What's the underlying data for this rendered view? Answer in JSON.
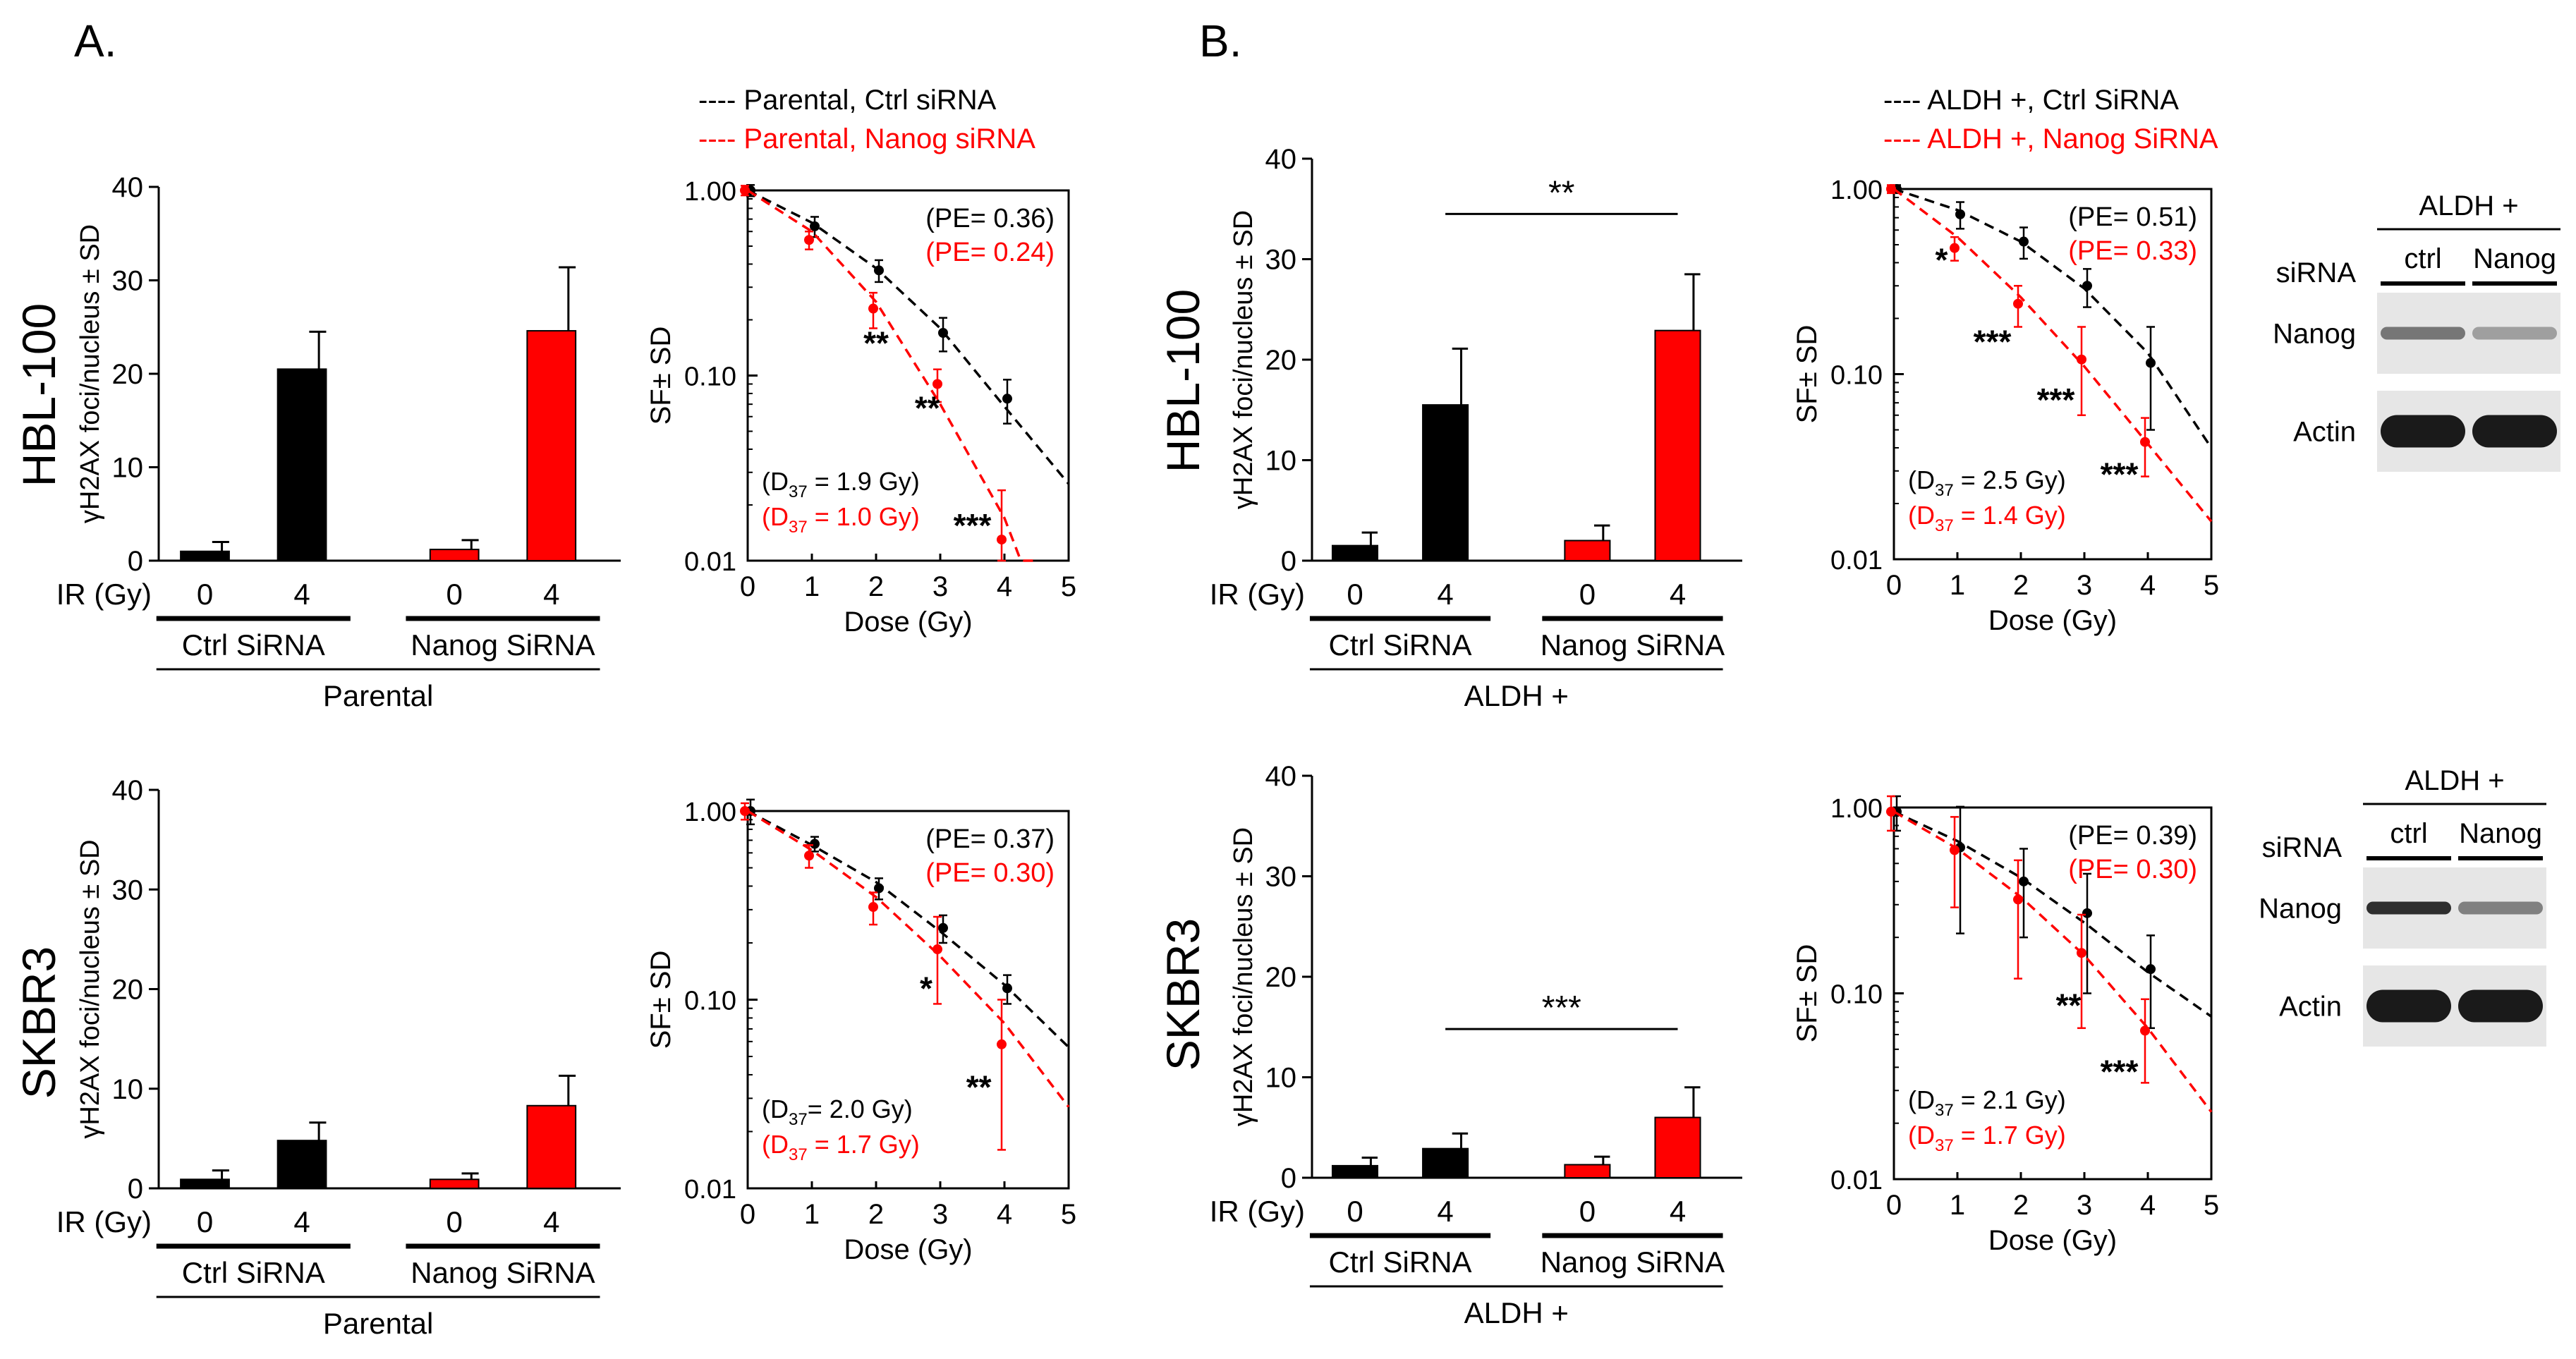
{
  "colors": {
    "black": "#000000",
    "red": "#ff0000",
    "blot_bg": "#e6e6e6",
    "band": "#1a1a1a"
  },
  "panel_labels": {
    "A": "A.",
    "B": "B."
  },
  "row_labels": {
    "r1": "HBL-100",
    "r2": "SKBR3"
  },
  "legends": {
    "A": {
      "black": "---- Parental, Ctrl siRNA",
      "red": "---- Parental, Nanog siRNA"
    },
    "B": {
      "black": "---- ALDH +, Ctrl SiRNA",
      "red": "---- ALDH +, Nanog SiRNA"
    }
  },
  "chart_data": [
    {
      "id": "bar_a1",
      "type": "bar",
      "ylabel": "γH2AX foci/nucleus ± SD",
      "ylim": [
        0,
        40
      ],
      "yticks": [
        "40",
        "30",
        "20",
        "10",
        "0"
      ],
      "ir_label": "IR (Gy)",
      "doses": [
        "0",
        "4",
        "0",
        "4"
      ],
      "groups": [
        "Ctrl SiRNA",
        "Nanog SiRNA"
      ],
      "cell": "Parental",
      "series": [
        {
          "name": "Ctrl SiRNA",
          "color": "black",
          "values": [
            1.0,
            20.5
          ],
          "errors": [
            1.0,
            4.0
          ]
        },
        {
          "name": "Nanog SiRNA",
          "color": "red",
          "values": [
            1.2,
            24.6
          ],
          "errors": [
            1.0,
            6.8
          ]
        }
      ],
      "sig": null
    },
    {
      "id": "bar_a2",
      "type": "bar",
      "ylabel": "γH2AX foci/nucleus ± SD",
      "ylim": [
        0,
        40
      ],
      "yticks": [
        "40",
        "30",
        "20",
        "10",
        "0"
      ],
      "ir_label": "IR (Gy)",
      "doses": [
        "0",
        "4",
        "0",
        "4"
      ],
      "groups": [
        "Ctrl SiRNA",
        "Nanog SiRNA"
      ],
      "cell": "Parental",
      "series": [
        {
          "name": "Ctrl SiRNA",
          "color": "black",
          "values": [
            0.9,
            4.8
          ],
          "errors": [
            0.9,
            1.8
          ]
        },
        {
          "name": "Nanog SiRNA",
          "color": "red",
          "values": [
            0.9,
            8.3
          ],
          "errors": [
            0.6,
            3.0
          ]
        }
      ],
      "sig": null
    },
    {
      "id": "bar_b1",
      "type": "bar",
      "ylabel": "γH2AX foci/nucleus ± SD",
      "ylim": [
        0,
        40
      ],
      "yticks": [
        "40",
        "30",
        "20",
        "10",
        "0"
      ],
      "ir_label": "IR (Gy)",
      "doses": [
        "0",
        "4",
        "0",
        "4"
      ],
      "groups": [
        "Ctrl SiRNA",
        "Nanog SiRNA"
      ],
      "cell": "ALDH +",
      "series": [
        {
          "name": "Ctrl SiRNA",
          "color": "black",
          "values": [
            1.5,
            15.5
          ],
          "errors": [
            1.3,
            5.6
          ]
        },
        {
          "name": "Nanog SiRNA",
          "color": "red",
          "values": [
            2.0,
            22.9
          ],
          "errors": [
            1.5,
            5.6
          ]
        }
      ],
      "sig": {
        "label": "**",
        "y": 34.5
      }
    },
    {
      "id": "bar_b2",
      "type": "bar",
      "ylabel": "γH2AX foci/nucleus ± SD",
      "ylim": [
        0,
        40
      ],
      "yticks": [
        "40",
        "30",
        "20",
        "10",
        "0"
      ],
      "ir_label": "IR (Gy)",
      "doses": [
        "0",
        "4",
        "0",
        "4"
      ],
      "groups": [
        "Ctrl SiRNA",
        "Nanog SiRNA"
      ],
      "cell": "ALDH +",
      "series": [
        {
          "name": "Ctrl SiRNA",
          "color": "black",
          "values": [
            1.2,
            2.9
          ],
          "errors": [
            0.8,
            1.5
          ]
        },
        {
          "name": "Nanog SiRNA",
          "color": "red",
          "values": [
            1.3,
            6.0
          ],
          "errors": [
            0.8,
            3.0
          ]
        }
      ],
      "sig": {
        "label": "***",
        "y": 14.8
      }
    },
    {
      "id": "sf_a1",
      "type": "line",
      "xlabel": "Dose (Gy)",
      "ylabel": "SF± SD",
      "xlim": [
        0,
        5
      ],
      "ylim": [
        0.01,
        1.0
      ],
      "xticks": [
        "0",
        "1",
        "2",
        "3",
        "4",
        "5"
      ],
      "yticks": [
        "1.00",
        "0.10",
        "0.01"
      ],
      "pe": {
        "black": "(PE= 0.36)",
        "red": "(PE= 0.24)"
      },
      "d37": {
        "black": [
          "(D",
          "37",
          " = 1.9 Gy)"
        ],
        "red": [
          "(D",
          "37",
          " = 1.0 Gy)"
        ]
      },
      "series": [
        {
          "name": "Parental, Ctrl siRNA",
          "color": "black",
          "x": [
            0,
            1,
            2,
            3,
            4
          ],
          "y": [
            1.0,
            0.64,
            0.37,
            0.17,
            0.075
          ],
          "err": [
            0.07,
            0.08,
            0.05,
            0.035,
            0.02
          ],
          "fit_x": [
            0,
            1,
            2,
            3,
            4,
            5
          ],
          "fit_y": [
            1.0,
            0.67,
            0.38,
            0.18,
            0.068,
            0.026
          ]
        },
        {
          "name": "Parental, Nanog siRNA",
          "color": "red",
          "x": [
            0,
            1,
            2,
            3,
            4
          ],
          "y": [
            1.0,
            0.54,
            0.23,
            0.09,
            0.013
          ],
          "err": [
            0.06,
            0.06,
            0.05,
            0.018,
            0.011
          ],
          "fit_x": [
            0,
            1,
            2,
            3,
            4,
            4.5
          ],
          "fit_y": [
            1.0,
            0.6,
            0.25,
            0.07,
            0.017,
            0.006
          ]
        }
      ],
      "annotations": [
        {
          "text": "**",
          "x": 2,
          "y": 0.13
        },
        {
          "text": "**",
          "x": 2.8,
          "y": 0.058
        },
        {
          "text": "***",
          "x": 3.5,
          "y": 0.0135
        }
      ]
    },
    {
      "id": "sf_a2",
      "type": "line",
      "xlabel": "Dose (Gy)",
      "ylabel": "SF± SD",
      "xlim": [
        0,
        5
      ],
      "ylim": [
        0.01,
        1.0
      ],
      "xticks": [
        "0",
        "1",
        "2",
        "3",
        "4",
        "5"
      ],
      "yticks": [
        "1.00",
        "0.10",
        "0.01"
      ],
      "pe": {
        "black": "(PE= 0.37)",
        "red": "(PE= 0.30)"
      },
      "d37": {
        "black": [
          "(D",
          "37",
          "= 2.0 Gy)"
        ],
        "red": [
          "(D",
          "37",
          " = 1.7 Gy)"
        ]
      },
      "series": [
        {
          "name": "Parental, Ctrl siRNA",
          "color": "black",
          "x": [
            0,
            1,
            2,
            3,
            4
          ],
          "y": [
            1.0,
            0.67,
            0.39,
            0.24,
            0.115
          ],
          "err": [
            0.15,
            0.06,
            0.05,
            0.04,
            0.02
          ],
          "fit_x": [
            0,
            1,
            2,
            3,
            4,
            5
          ],
          "fit_y": [
            1.0,
            0.66,
            0.42,
            0.23,
            0.12,
            0.056
          ]
        },
        {
          "name": "Parental, Nanog siRNA",
          "color": "red",
          "x": [
            0,
            1,
            2,
            3,
            4
          ],
          "y": [
            1.0,
            0.58,
            0.31,
            0.185,
            0.058
          ],
          "err": [
            0.1,
            0.08,
            0.06,
            0.09,
            0.042
          ],
          "fit_x": [
            0,
            1,
            2,
            3,
            4,
            5
          ],
          "fit_y": [
            1.0,
            0.62,
            0.35,
            0.17,
            0.075,
            0.027
          ]
        }
      ],
      "annotations": [
        {
          "text": "*",
          "x": 2.78,
          "y": 0.1
        },
        {
          "text": "**",
          "x": 3.6,
          "y": 0.03
        }
      ]
    },
    {
      "id": "sf_b1",
      "type": "line",
      "xlabel": "Dose (Gy)",
      "ylabel": "SF± SD",
      "xlim": [
        0,
        5
      ],
      "ylim": [
        0.01,
        1.0
      ],
      "xticks": [
        "0",
        "1",
        "2",
        "3",
        "4",
        "5"
      ],
      "yticks": [
        "1.00",
        "0.10",
        "0.01"
      ],
      "pe": {
        "black": "(PE= 0.51)",
        "red": "(PE= 0.33)"
      },
      "d37": {
        "black": [
          "(D",
          "37",
          " = 2.5 Gy)"
        ],
        "red": [
          "(D",
          "37",
          " = 1.4 Gy)"
        ]
      },
      "series": [
        {
          "name": "ALDH +, Ctrl SiRNA",
          "color": "black",
          "x": [
            0,
            1,
            2,
            3,
            4
          ],
          "y": [
            1.0,
            0.73,
            0.52,
            0.3,
            0.115
          ],
          "err": [
            0.05,
            0.12,
            0.1,
            0.07,
            0.065
          ],
          "fit_x": [
            0,
            1,
            2,
            3,
            4,
            5
          ],
          "fit_y": [
            1.0,
            0.77,
            0.52,
            0.29,
            0.13,
            0.04
          ]
        },
        {
          "name": "ALDH +, Nanog SiRNA",
          "color": "red",
          "x": [
            0,
            1,
            2,
            3,
            4
          ],
          "y": [
            1.0,
            0.48,
            0.24,
            0.12,
            0.043
          ],
          "err": [
            0.05,
            0.07,
            0.06,
            0.06,
            0.015
          ],
          "fit_x": [
            0,
            1,
            2,
            3,
            4,
            5
          ],
          "fit_y": [
            1.0,
            0.55,
            0.26,
            0.11,
            0.042,
            0.016
          ]
        }
      ],
      "annotations": [
        {
          "text": "*",
          "x": 0.75,
          "y": 0.36
        },
        {
          "text": "***",
          "x": 1.55,
          "y": 0.13
        },
        {
          "text": "***",
          "x": 2.55,
          "y": 0.063
        },
        {
          "text": "***",
          "x": 3.55,
          "y": 0.025
        }
      ]
    },
    {
      "id": "sf_b2",
      "type": "line",
      "xlabel": "Dose (Gy)",
      "ylabel": "SF± SD",
      "xlim": [
        0,
        5
      ],
      "ylim": [
        0.01,
        1.0
      ],
      "xticks": [
        "0",
        "1",
        "2",
        "3",
        "4",
        "5"
      ],
      "yticks": [
        "1.00",
        "0.10",
        "0.01"
      ],
      "pe": {
        "black": "(PE= 0.39)",
        "red": "(PE= 0.30)"
      },
      "d37": {
        "black": [
          "(D",
          "37",
          " = 2.1 Gy)"
        ],
        "red": [
          "(D",
          "37",
          " = 1.7 Gy)"
        ]
      },
      "series": [
        {
          "name": "ALDH +, Ctrl SiRNA",
          "color": "black",
          "x": [
            0,
            1,
            2,
            3,
            4
          ],
          "y": [
            0.95,
            0.61,
            0.4,
            0.27,
            0.135
          ],
          "err": [
            0.2,
            0.4,
            0.2,
            0.17,
            0.07
          ],
          "fit_x": [
            0,
            1,
            2,
            3,
            4,
            5
          ],
          "fit_y": [
            0.95,
            0.66,
            0.42,
            0.24,
            0.13,
            0.075
          ]
        },
        {
          "name": "ALDH +, Nanog SiRNA",
          "color": "red",
          "x": [
            0,
            1,
            2,
            3,
            4
          ],
          "y": [
            0.95,
            0.59,
            0.32,
            0.165,
            0.063
          ],
          "err": [
            0.2,
            0.3,
            0.2,
            0.1,
            0.03
          ],
          "fit_x": [
            0,
            1,
            2,
            3,
            4,
            5
          ],
          "fit_y": [
            0.95,
            0.6,
            0.33,
            0.16,
            0.065,
            0.023
          ]
        }
      ],
      "annotations": [
        {
          "text": "**",
          "x": 2.75,
          "y": 0.075
        },
        {
          "text": "***",
          "x": 3.55,
          "y": 0.033
        }
      ]
    }
  ],
  "blots": [
    {
      "id": "blot_b1",
      "header": "ALDH +",
      "sirna_label": "siRNA",
      "lanes": [
        "ctrl",
        "Nanog"
      ],
      "rows": [
        "Nanog",
        "Actin"
      ],
      "intensity": {
        "Nanog": [
          0.55,
          0.35
        ],
        "Actin": [
          1.0,
          1.0
        ]
      }
    },
    {
      "id": "blot_b2",
      "header": "ALDH +",
      "sirna_label": "siRNA",
      "lanes": [
        "ctrl",
        "Nanog"
      ],
      "rows": [
        "Nanog",
        "Actin"
      ],
      "intensity": {
        "Nanog": [
          0.9,
          0.5
        ],
        "Actin": [
          1.0,
          1.0
        ]
      }
    }
  ]
}
